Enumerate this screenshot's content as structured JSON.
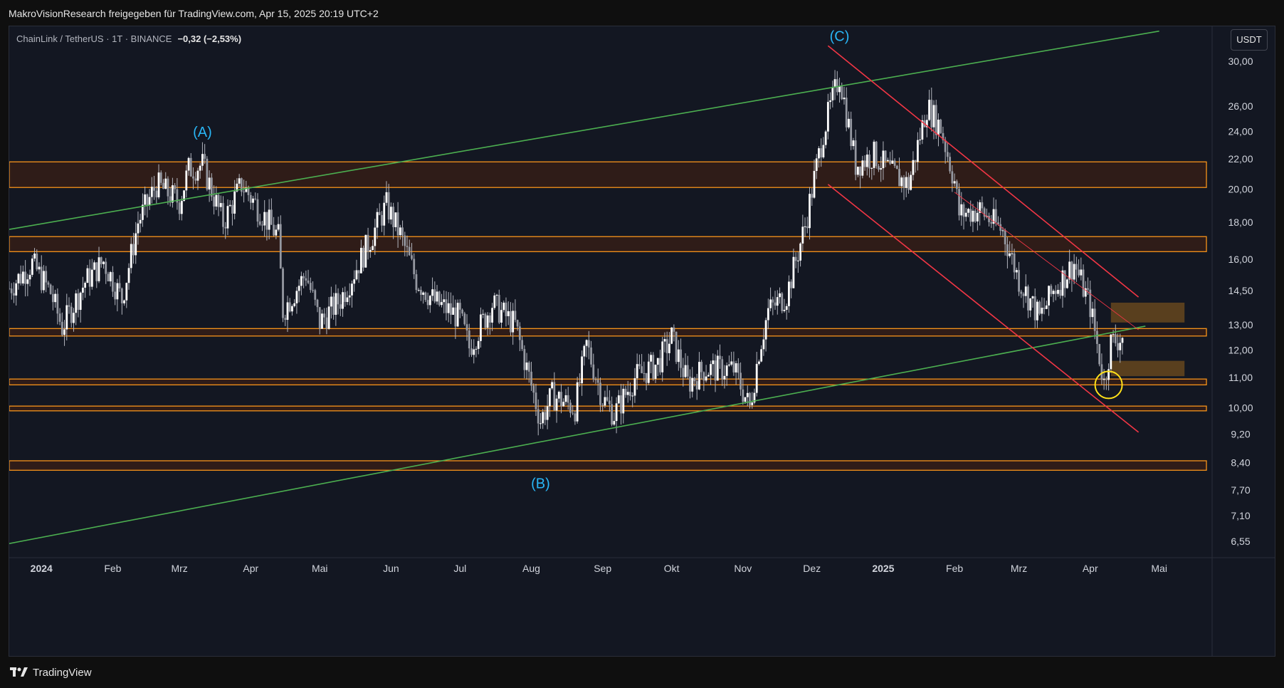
{
  "header": {
    "attribution": "MakroVisionResearch freigegeben für TradingView.com, Apr 15, 2025 20:19 UTC+2"
  },
  "legend": {
    "symbol": "ChainLink / TetherUS · 1T · BINANCE",
    "change": "−0,32 (−2,53%)"
  },
  "currency_badge": "USDT",
  "footer": {
    "brand": "TradingView"
  },
  "colors": {
    "background": "#131722",
    "zone_border": "#f7931a",
    "zone_fill": "#3a1f16",
    "target_fill": "#6b4a1e",
    "channel_red": "#f23645",
    "trend_green": "#4caf50",
    "wave_label": "#29b6f6",
    "circle": "#ffe119"
  },
  "chart_data": {
    "type": "candlestick",
    "title": "ChainLink / TetherUS · 1T · BINANCE",
    "scale": "log",
    "ylim": [
      6.3,
      33.5
    ],
    "y_ticks": [
      {
        "value": 30.0,
        "label": "30,00"
      },
      {
        "value": 26.0,
        "label": "26,00"
      },
      {
        "value": 24.0,
        "label": "24,00"
      },
      {
        "value": 22.0,
        "label": "22,00"
      },
      {
        "value": 20.0,
        "label": "20,00"
      },
      {
        "value": 18.0,
        "label": "18,00"
      },
      {
        "value": 16.0,
        "label": "16,00"
      },
      {
        "value": 14.5,
        "label": "14,50"
      },
      {
        "value": 13.0,
        "label": "13,00"
      },
      {
        "value": 12.0,
        "label": "12,00"
      },
      {
        "value": 11.0,
        "label": "11,00"
      },
      {
        "value": 10.0,
        "label": "10,00"
      },
      {
        "value": 9.2,
        "label": "9,20"
      },
      {
        "value": 8.4,
        "label": "8,40"
      },
      {
        "value": 7.7,
        "label": "7,70"
      },
      {
        "value": 7.1,
        "label": "7,10"
      },
      {
        "value": 6.55,
        "label": "6,55"
      }
    ],
    "x_range": [
      "2023-12-18",
      "2025-05-24"
    ],
    "x_ticks": [
      {
        "date": "2024-01-01",
        "label": "2024",
        "bold": true
      },
      {
        "date": "2024-02-01",
        "label": "Feb"
      },
      {
        "date": "2024-03-01",
        "label": "Mrz"
      },
      {
        "date": "2024-04-01",
        "label": "Apr"
      },
      {
        "date": "2024-05-01",
        "label": "Mai"
      },
      {
        "date": "2024-06-01",
        "label": "Jun"
      },
      {
        "date": "2024-07-01",
        "label": "Jul"
      },
      {
        "date": "2024-08-01",
        "label": "Aug"
      },
      {
        "date": "2024-09-01",
        "label": "Sep"
      },
      {
        "date": "2024-10-01",
        "label": "Okt"
      },
      {
        "date": "2024-11-01",
        "label": "Nov"
      },
      {
        "date": "2024-12-01",
        "label": "Dez"
      },
      {
        "date": "2025-01-01",
        "label": "2025",
        "bold": true
      },
      {
        "date": "2025-02-01",
        "label": "Feb"
      },
      {
        "date": "2025-03-01",
        "label": "Mrz"
      },
      {
        "date": "2025-04-01",
        "label": "Apr"
      },
      {
        "date": "2025-05-01",
        "label": "Mai"
      }
    ],
    "price_path": [
      [
        "2023-12-18",
        14.6
      ],
      [
        "2023-12-28",
        15.8
      ],
      [
        "2024-01-05",
        14.4
      ],
      [
        "2024-01-10",
        12.9
      ],
      [
        "2024-01-20",
        14.9
      ],
      [
        "2024-01-28",
        15.9
      ],
      [
        "2024-02-05",
        14.1
      ],
      [
        "2024-02-12",
        18.0
      ],
      [
        "2024-02-20",
        20.3
      ],
      [
        "2024-03-01",
        19.2
      ],
      [
        "2024-03-05",
        21.3
      ],
      [
        "2024-03-11",
        21.6
      ],
      [
        "2024-03-20",
        18.0
      ],
      [
        "2024-03-28",
        20.3
      ],
      [
        "2024-04-05",
        18.7
      ],
      [
        "2024-04-13",
        17.2
      ],
      [
        "2024-04-15",
        13.6
      ],
      [
        "2024-04-25",
        15.3
      ],
      [
        "2024-05-01",
        13.1
      ],
      [
        "2024-05-10",
        14.1
      ],
      [
        "2024-05-20",
        16.3
      ],
      [
        "2024-05-30",
        19.0
      ],
      [
        "2024-06-05",
        17.3
      ],
      [
        "2024-06-12",
        15.0
      ],
      [
        "2024-06-20",
        14.0
      ],
      [
        "2024-07-01",
        13.3
      ],
      [
        "2024-07-05",
        12.1
      ],
      [
        "2024-07-15",
        13.9
      ],
      [
        "2024-07-25",
        13.0
      ],
      [
        "2024-08-05",
        9.6
      ],
      [
        "2024-08-10",
        10.4
      ],
      [
        "2024-08-20",
        10.0
      ],
      [
        "2024-08-25",
        12.2
      ],
      [
        "2024-09-01",
        10.3
      ],
      [
        "2024-09-06",
        9.8
      ],
      [
        "2024-09-15",
        11.0
      ],
      [
        "2024-09-25",
        11.5
      ],
      [
        "2024-10-01",
        12.5
      ],
      [
        "2024-10-08",
        10.8
      ],
      [
        "2024-10-15",
        11.3
      ],
      [
        "2024-10-28",
        11.3
      ],
      [
        "2024-11-04",
        10.0
      ],
      [
        "2024-11-08",
        12.0
      ],
      [
        "2024-11-12",
        13.6
      ],
      [
        "2024-11-20",
        14.3
      ],
      [
        "2024-11-28",
        17.8
      ],
      [
        "2024-12-06",
        24.0
      ],
      [
        "2024-12-13",
        28.7
      ],
      [
        "2024-12-20",
        21.6
      ],
      [
        "2024-12-28",
        22.3
      ],
      [
        "2025-01-05",
        21.0
      ],
      [
        "2025-01-12",
        20.3
      ],
      [
        "2025-01-20",
        26.0
      ],
      [
        "2025-01-26",
        24.3
      ],
      [
        "2025-02-01",
        20.5
      ],
      [
        "2025-02-03",
        18.5
      ],
      [
        "2025-02-12",
        18.7
      ],
      [
        "2025-02-22",
        17.5
      ],
      [
        "2025-03-01",
        15.0
      ],
      [
        "2025-03-10",
        13.3
      ],
      [
        "2025-03-16",
        14.5
      ],
      [
        "2025-03-25",
        15.8
      ],
      [
        "2025-04-01",
        13.8
      ],
      [
        "2025-04-07",
        10.8
      ],
      [
        "2025-04-10",
        12.3
      ],
      [
        "2025-04-15",
        12.5
      ]
    ],
    "zones": [
      {
        "y1": 20.1,
        "y2": 21.8
      },
      {
        "y1": 16.4,
        "y2": 17.2
      },
      {
        "y1": 12.55,
        "y2": 12.85
      },
      {
        "y1": 10.75,
        "y2": 10.95
      },
      {
        "y1": 9.9,
        "y2": 10.05
      },
      {
        "y1": 8.2,
        "y2": 8.45
      }
    ],
    "target_boxes": [
      {
        "x1": "2025-04-10",
        "x2": "2025-05-12",
        "y1": 13.1,
        "y2": 13.95
      },
      {
        "x1": "2025-04-10",
        "x2": "2025-05-12",
        "y1": 11.05,
        "y2": 11.6
      }
    ],
    "trendlines": [
      {
        "color": "green",
        "points": [
          [
            "2023-12-18",
            17.6
          ],
          [
            "2025-05-01",
            33.0
          ]
        ]
      },
      {
        "color": "green",
        "points": [
          [
            "2023-12-18",
            6.5
          ],
          [
            "2025-04-25",
            12.95
          ]
        ]
      },
      {
        "color": "red",
        "points": [
          [
            "2024-12-08",
            31.5
          ],
          [
            "2025-04-22",
            14.2
          ]
        ]
      },
      {
        "color": "red",
        "points": [
          [
            "2024-12-08",
            20.3
          ],
          [
            "2025-04-22",
            9.25
          ]
        ]
      },
      {
        "color": "red-thin",
        "points": [
          [
            "2025-02-01",
            19.8
          ],
          [
            "2025-04-22",
            12.8
          ]
        ]
      }
    ],
    "wave_labels": [
      {
        "label": "(A)",
        "date": "2024-03-11",
        "value": 23.6
      },
      {
        "label": "(B)",
        "date": "2024-08-05",
        "value": 7.75
      },
      {
        "label": "(C)",
        "date": "2024-12-13",
        "value": 32.0
      }
    ],
    "highlight_circle": {
      "date": "2025-04-09",
      "value": 10.75
    }
  }
}
